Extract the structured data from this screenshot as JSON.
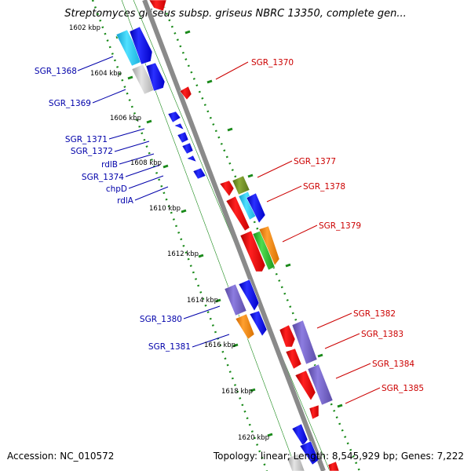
{
  "title": "Streptomyces griseus subsp. griseus NBRC 13350, complete gen...",
  "footer": {
    "accession": "Accession: NC_010572",
    "summary": "Topology: linear; Length: 8,545,929 bp; Genes: 7,222"
  },
  "kbp_labels": [
    "1602 kbp",
    "1604 kbp",
    "1606 kbp",
    "1608 kbp",
    "1610 kbp",
    "1612 kbp",
    "1614 kbp",
    "1616 kbp",
    "1618 kbp",
    "1620 kbp"
  ],
  "left_gene_labels": [
    "SGR_1368",
    "SGR_1369",
    "SGR_1371",
    "SGR_1372",
    "rdlB",
    "SGR_1374",
    "chpD",
    "rdlA",
    "SGR_1380",
    "SGR_1381"
  ],
  "right_gene_labels": [
    "SGR_1370",
    "SGR_1377",
    "SGR_1378",
    "SGR_1379",
    "SGR_1382",
    "SGR_1383",
    "SGR_1384",
    "SGR_1385"
  ],
  "colors": {
    "left_label": "#0000aa",
    "right_label": "#cc0000",
    "backbone": "#8a8a8a",
    "dotted": "#1a8a1a",
    "red": "#e61010",
    "blue": "#0a10dd",
    "cyan": "#22c8ee",
    "purple": "#7060c0",
    "orange": "#f08a10",
    "green": "#2ab82a",
    "olive": "#6a8a20",
    "gray": "#c0c0c0"
  },
  "icons": [
    "gene-arrow",
    "kbp-tick"
  ]
}
